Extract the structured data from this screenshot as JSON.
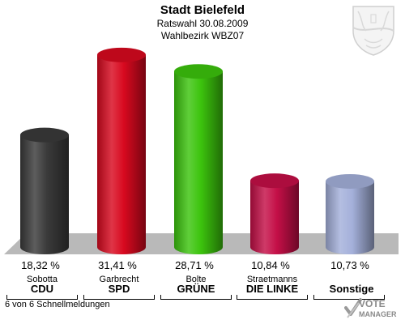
{
  "header": {
    "title": "Stadt Bielefeld",
    "subtitle_1": "Ratswahl 30.08.2009",
    "subtitle_2": "Wahlbezirk WBZ07"
  },
  "chart_data": {
    "type": "bar",
    "categories": [
      "CDU",
      "SPD",
      "GRÜNE",
      "DIE LINKE",
      "Sonstige"
    ],
    "candidates": [
      "Sobotta",
      "Garbrecht",
      "Bolte",
      "Straetmanns",
      ""
    ],
    "values": [
      18.32,
      31.41,
      28.71,
      10.84,
      10.73
    ],
    "value_labels": [
      "18,32 %",
      "31,41 %",
      "28,71 %",
      "10,84 %",
      "10,73 %"
    ],
    "colors": [
      "#3a3a3a",
      "#d8091f",
      "#3cc40d",
      "#c40f47",
      "#a4b0da"
    ],
    "title": "Stadt Bielefeld",
    "xlabel": "",
    "ylabel": "",
    "ylim": [
      0,
      35
    ],
    "grid": false,
    "legend": "none"
  },
  "footer": {
    "status": "6 von 6 Schnellmeldungen"
  },
  "logo": {
    "line1": "VOTE",
    "line2": "MANAGER"
  }
}
